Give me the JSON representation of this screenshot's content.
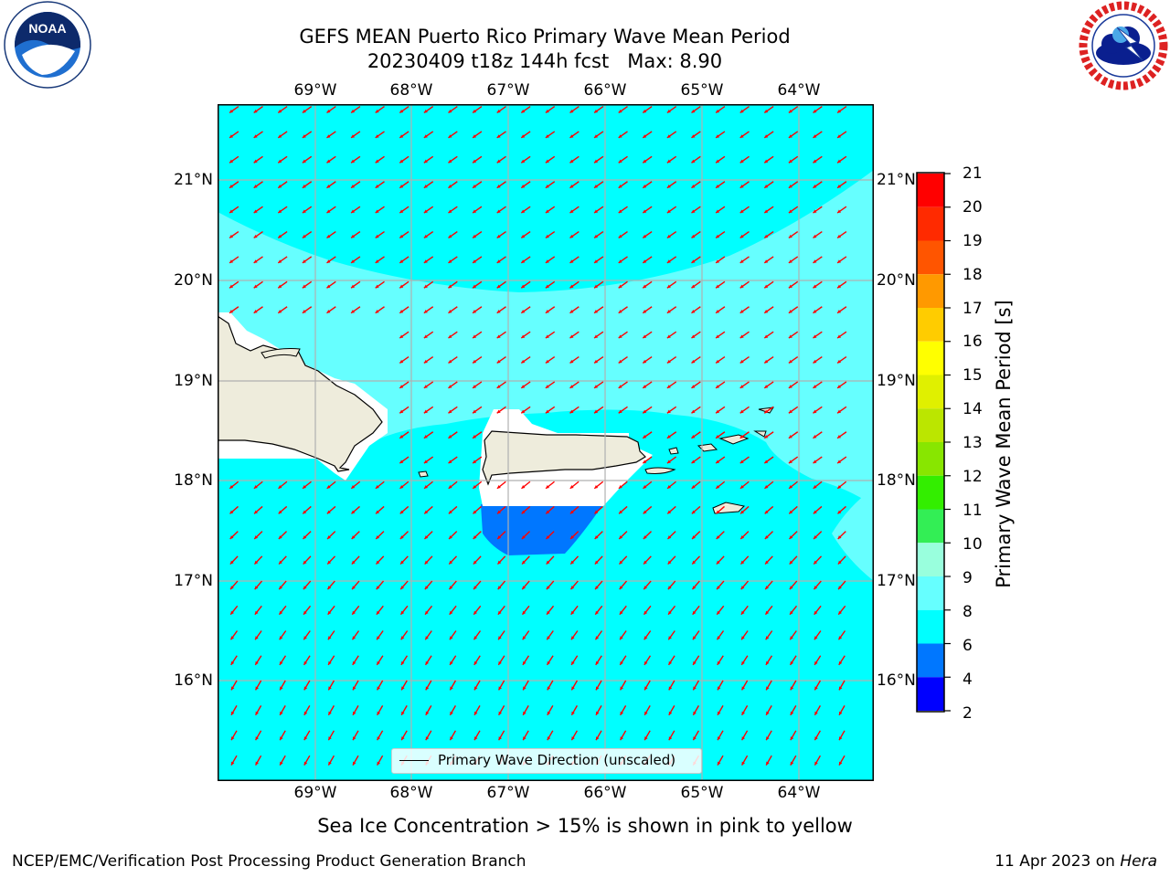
{
  "title": {
    "line1": "GEFS MEAN Puerto Rico Primary Wave Mean Period",
    "line2": "20230409 t18z 144h fcst   Max: 8.90"
  },
  "logos": {
    "noaa": {
      "text": "NOAA",
      "ring_text": "NATIONAL OCEANIC AND ATMOSPHERIC ADMINISTRATION · U.S. DEPARTMENT OF COMMERCE"
    },
    "nws": {
      "ring_text": "NATIONAL WEATHER SERVICE"
    }
  },
  "map": {
    "lon_labels": [
      "69°W",
      "68°W",
      "67°W",
      "66°W",
      "65°W",
      "64°W"
    ],
    "lat_labels": [
      "21°N",
      "20°N",
      "19°N",
      "18°N",
      "17°N",
      "16°N"
    ],
    "legend_label": "Primary Wave Direction (unscaled)",
    "arrow_color": "#ff0000",
    "land_color": "#eeecdc",
    "ocean_colors": {
      "6-8": "#00ffff",
      "8-9": "#66ffff",
      "4-6": "#0077ff"
    }
  },
  "colorbar": {
    "label": "Primary Wave Mean Period [s]",
    "ticks": [
      "21",
      "20",
      "19",
      "18",
      "17",
      "16",
      "15",
      "14",
      "13",
      "12",
      "11",
      "10",
      "9",
      "8",
      "6",
      "4",
      "2"
    ],
    "bands": [
      {
        "from": 20,
        "to": 21,
        "color": "#ff0000"
      },
      {
        "from": 19,
        "to": 20,
        "color": "#ff2a00"
      },
      {
        "from": 18,
        "to": 19,
        "color": "#ff5500"
      },
      {
        "from": 17,
        "to": 18,
        "color": "#ff9900"
      },
      {
        "from": 16,
        "to": 17,
        "color": "#ffcc00"
      },
      {
        "from": 15,
        "to": 16,
        "color": "#ffff00"
      },
      {
        "from": 14,
        "to": 15,
        "color": "#e0f000"
      },
      {
        "from": 13,
        "to": 14,
        "color": "#bbe600"
      },
      {
        "from": 12,
        "to": 13,
        "color": "#88e600"
      },
      {
        "from": 11,
        "to": 12,
        "color": "#33ee00"
      },
      {
        "from": 10,
        "to": 11,
        "color": "#33ee55"
      },
      {
        "from": 9,
        "to": 10,
        "color": "#99ffdd"
      },
      {
        "from": 8,
        "to": 9,
        "color": "#66ffff"
      },
      {
        "from": 6,
        "to": 8,
        "color": "#00ffff"
      },
      {
        "from": 4,
        "to": 6,
        "color": "#0077ff"
      },
      {
        "from": 2,
        "to": 4,
        "color": "#0000ff"
      }
    ]
  },
  "sea_ice_note": "Sea Ice Concentration > 15% is shown in pink to yellow",
  "footer": {
    "left": "NCEP/EMC/Verification Post Processing Product Generation Branch",
    "right_date": "11 Apr 2023 on ",
    "right_host": "Hera"
  }
}
